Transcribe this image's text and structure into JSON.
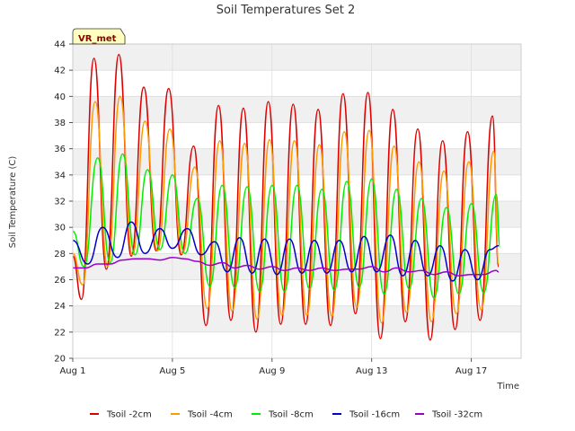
{
  "chart_data": {
    "type": "line",
    "title": "Soil Temperatures Set 2",
    "xlabel": "Time",
    "ylabel": "Soil Temperature (C)",
    "badge": "VR_met",
    "x_ticks": [
      {
        "day": 1,
        "label": "Aug 1"
      },
      {
        "day": 5,
        "label": "Aug 5"
      },
      {
        "day": 9,
        "label": "Aug 9"
      },
      {
        "day": 13,
        "label": "Aug 13"
      },
      {
        "day": 17,
        "label": "Aug 17"
      }
    ],
    "xlim_days": [
      1,
      19
    ],
    "ylim": [
      20,
      44
    ],
    "yticks": [
      20,
      22,
      24,
      26,
      28,
      30,
      32,
      34,
      36,
      38,
      40,
      42,
      44
    ],
    "grid": true,
    "legend_position": "bottom",
    "series": [
      {
        "name": "Tsoil -2cm",
        "color": "#dd0000",
        "values": [
          [
            1.0,
            27.8
          ],
          [
            1.35,
            24.5
          ],
          [
            1.85,
            42.9
          ],
          [
            2.35,
            26.8
          ],
          [
            2.85,
            43.2
          ],
          [
            3.35,
            27.8
          ],
          [
            3.85,
            40.7
          ],
          [
            4.35,
            28.2
          ],
          [
            4.85,
            40.6
          ],
          [
            5.35,
            27.9
          ],
          [
            5.85,
            36.2
          ],
          [
            6.35,
            22.5
          ],
          [
            6.85,
            39.3
          ],
          [
            7.35,
            22.9
          ],
          [
            7.85,
            39.1
          ],
          [
            8.35,
            22.0
          ],
          [
            8.85,
            39.6
          ],
          [
            9.35,
            22.6
          ],
          [
            9.85,
            39.4
          ],
          [
            10.35,
            22.6
          ],
          [
            10.85,
            39.0
          ],
          [
            11.35,
            22.5
          ],
          [
            11.85,
            40.2
          ],
          [
            12.35,
            23.4
          ],
          [
            12.85,
            40.3
          ],
          [
            13.35,
            21.5
          ],
          [
            13.85,
            39.0
          ],
          [
            14.35,
            22.8
          ],
          [
            14.85,
            37.5
          ],
          [
            15.35,
            21.4
          ],
          [
            15.85,
            36.6
          ],
          [
            16.35,
            22.2
          ],
          [
            16.85,
            37.3
          ],
          [
            17.35,
            22.9
          ],
          [
            17.85,
            38.5
          ],
          [
            18.1,
            27.0
          ]
        ]
      },
      {
        "name": "Tsoil -4cm",
        "color": "#ff9900",
        "values": [
          [
            1.0,
            28.0
          ],
          [
            1.4,
            25.6
          ],
          [
            1.9,
            39.6
          ],
          [
            2.4,
            27.0
          ],
          [
            2.9,
            40.0
          ],
          [
            3.4,
            27.9
          ],
          [
            3.9,
            38.1
          ],
          [
            4.4,
            28.2
          ],
          [
            4.9,
            37.5
          ],
          [
            5.4,
            28.0
          ],
          [
            5.9,
            34.6
          ],
          [
            6.4,
            23.8
          ],
          [
            6.9,
            36.6
          ],
          [
            7.4,
            23.6
          ],
          [
            7.9,
            36.4
          ],
          [
            8.4,
            23.0
          ],
          [
            8.9,
            36.7
          ],
          [
            9.4,
            23.3
          ],
          [
            9.9,
            36.6
          ],
          [
            10.4,
            23.3
          ],
          [
            10.9,
            36.3
          ],
          [
            11.4,
            23.2
          ],
          [
            11.9,
            37.3
          ],
          [
            12.4,
            23.9
          ],
          [
            12.9,
            37.4
          ],
          [
            13.4,
            22.7
          ],
          [
            13.9,
            36.2
          ],
          [
            14.4,
            23.5
          ],
          [
            14.9,
            35.0
          ],
          [
            15.4,
            22.8
          ],
          [
            15.9,
            34.3
          ],
          [
            16.4,
            23.4
          ],
          [
            16.9,
            35.0
          ],
          [
            17.4,
            23.7
          ],
          [
            17.9,
            35.8
          ],
          [
            18.1,
            27.2
          ]
        ]
      },
      {
        "name": "Tsoil -8cm",
        "color": "#00ee00",
        "values": [
          [
            1.0,
            29.7
          ],
          [
            1.45,
            27.0
          ],
          [
            2.0,
            35.3
          ],
          [
            2.5,
            27.3
          ],
          [
            3.0,
            35.6
          ],
          [
            3.5,
            27.9
          ],
          [
            4.0,
            34.4
          ],
          [
            4.5,
            28.3
          ],
          [
            5.0,
            34.0
          ],
          [
            5.5,
            28.0
          ],
          [
            6.0,
            32.2
          ],
          [
            6.5,
            25.5
          ],
          [
            7.0,
            33.2
          ],
          [
            7.5,
            25.4
          ],
          [
            8.0,
            33.1
          ],
          [
            8.5,
            25.1
          ],
          [
            9.0,
            33.2
          ],
          [
            9.5,
            25.1
          ],
          [
            10.0,
            33.2
          ],
          [
            10.5,
            25.3
          ],
          [
            11.0,
            32.9
          ],
          [
            11.5,
            25.2
          ],
          [
            12.0,
            33.5
          ],
          [
            12.5,
            25.4
          ],
          [
            13.0,
            33.7
          ],
          [
            13.5,
            24.9
          ],
          [
            14.0,
            32.9
          ],
          [
            14.5,
            25.3
          ],
          [
            15.0,
            32.2
          ],
          [
            15.5,
            24.6
          ],
          [
            16.0,
            31.5
          ],
          [
            16.5,
            24.9
          ],
          [
            17.0,
            31.8
          ],
          [
            17.5,
            25.0
          ],
          [
            18.0,
            32.5
          ],
          [
            18.15,
            28.5
          ]
        ]
      },
      {
        "name": "Tsoil -16cm",
        "color": "#0000cc",
        "values": [
          [
            1.0,
            29.0
          ],
          [
            1.6,
            27.2
          ],
          [
            2.2,
            30.0
          ],
          [
            2.8,
            27.7
          ],
          [
            3.35,
            30.4
          ],
          [
            3.9,
            28.0
          ],
          [
            4.5,
            29.9
          ],
          [
            5.0,
            28.4
          ],
          [
            5.6,
            29.9
          ],
          [
            6.15,
            27.9
          ],
          [
            6.7,
            28.9
          ],
          [
            7.2,
            26.6
          ],
          [
            7.7,
            29.2
          ],
          [
            8.2,
            26.5
          ],
          [
            8.7,
            29.1
          ],
          [
            9.2,
            26.4
          ],
          [
            9.7,
            29.1
          ],
          [
            10.2,
            26.5
          ],
          [
            10.7,
            29.0
          ],
          [
            11.2,
            26.5
          ],
          [
            11.7,
            29.0
          ],
          [
            12.2,
            26.6
          ],
          [
            12.7,
            29.3
          ],
          [
            13.2,
            26.6
          ],
          [
            13.75,
            29.4
          ],
          [
            14.25,
            26.3
          ],
          [
            14.75,
            29.0
          ],
          [
            15.25,
            26.3
          ],
          [
            15.75,
            28.6
          ],
          [
            16.25,
            25.9
          ],
          [
            16.75,
            28.3
          ],
          [
            17.25,
            26.0
          ],
          [
            17.75,
            28.3
          ],
          [
            18.1,
            28.6
          ]
        ]
      },
      {
        "name": "Tsoil -32cm",
        "color": "#9900cc",
        "values": [
          [
            1.0,
            26.9
          ],
          [
            1.5,
            26.9
          ],
          [
            2.0,
            27.2
          ],
          [
            2.5,
            27.2
          ],
          [
            3.0,
            27.5
          ],
          [
            3.5,
            27.6
          ],
          [
            4.0,
            27.6
          ],
          [
            4.5,
            27.5
          ],
          [
            5.0,
            27.7
          ],
          [
            5.5,
            27.6
          ],
          [
            6.0,
            27.4
          ],
          [
            6.5,
            27.1
          ],
          [
            7.0,
            27.3
          ],
          [
            7.5,
            26.9
          ],
          [
            8.0,
            27.1
          ],
          [
            8.5,
            26.8
          ],
          [
            9.0,
            27.0
          ],
          [
            9.5,
            26.7
          ],
          [
            10.0,
            26.9
          ],
          [
            10.5,
            26.7
          ],
          [
            11.0,
            26.9
          ],
          [
            11.5,
            26.7
          ],
          [
            12.0,
            26.8
          ],
          [
            12.5,
            26.8
          ],
          [
            13.0,
            27.0
          ],
          [
            13.5,
            26.6
          ],
          [
            14.0,
            26.9
          ],
          [
            14.5,
            26.6
          ],
          [
            15.0,
            26.7
          ],
          [
            15.5,
            26.4
          ],
          [
            16.0,
            26.6
          ],
          [
            16.5,
            26.3
          ],
          [
            17.0,
            26.4
          ],
          [
            17.5,
            26.4
          ],
          [
            18.0,
            26.7
          ],
          [
            18.1,
            26.6
          ]
        ]
      }
    ]
  }
}
